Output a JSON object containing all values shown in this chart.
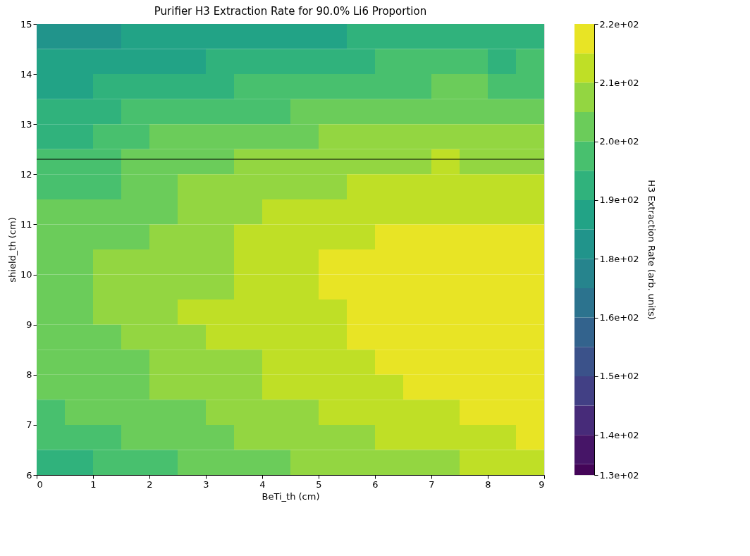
{
  "chart_data": {
    "type": "heatmap",
    "title": "Purifier H3 Extraction Rate for 90.0% Li6 Proportion",
    "xlabel": "BeTi_th (cm)",
    "ylabel": "shield_th (cm)",
    "clabel": "H3 Extraction Rate (arb. units)",
    "x": [
      0.25,
      0.75,
      1.25,
      1.75,
      2.25,
      2.75,
      3.25,
      3.75,
      4.25,
      4.75,
      5.25,
      5.75,
      6.25,
      6.75,
      7.25,
      7.75,
      8.25,
      8.75
    ],
    "y": [
      14.75,
      14.25,
      13.75,
      13.25,
      12.75,
      12.25,
      11.75,
      11.25,
      10.75,
      10.25,
      9.75,
      9.25,
      8.75,
      8.25,
      7.75,
      7.25,
      6.75,
      6.25
    ],
    "cells": [
      [
        178,
        178,
        178,
        184,
        184,
        184,
        184,
        184,
        184,
        184,
        184,
        189,
        189,
        189,
        189,
        189,
        189,
        189
      ],
      [
        184,
        184,
        184,
        184,
        184,
        184,
        189,
        189,
        189,
        189,
        189,
        189,
        195,
        195,
        195,
        195,
        189,
        195
      ],
      [
        184,
        184,
        189,
        189,
        189,
        189,
        189,
        195,
        195,
        195,
        195,
        195,
        195,
        195,
        200,
        200,
        195,
        195
      ],
      [
        189,
        189,
        189,
        195,
        195,
        195,
        195,
        195,
        195,
        200,
        200,
        200,
        200,
        200,
        200,
        200,
        200,
        200
      ],
      [
        189,
        189,
        195,
        195,
        200,
        200,
        200,
        200,
        200,
        200,
        206,
        206,
        206,
        206,
        206,
        206,
        206,
        206
      ],
      [
        195,
        195,
        195,
        200,
        200,
        200,
        200,
        206,
        206,
        206,
        206,
        206,
        206,
        206,
        211,
        206,
        206,
        206
      ],
      [
        195,
        195,
        195,
        200,
        200,
        206,
        206,
        206,
        206,
        206,
        206,
        211,
        211,
        211,
        211,
        211,
        211,
        211
      ],
      [
        200,
        200,
        200,
        200,
        200,
        206,
        206,
        206,
        211,
        211,
        211,
        211,
        211,
        211,
        211,
        211,
        211,
        211
      ],
      [
        200,
        200,
        200,
        200,
        206,
        206,
        206,
        211,
        211,
        211,
        211,
        211,
        217,
        217,
        217,
        217,
        217,
        217
      ],
      [
        200,
        200,
        206,
        206,
        206,
        206,
        206,
        211,
        211,
        211,
        217,
        217,
        217,
        217,
        217,
        217,
        217,
        217
      ],
      [
        200,
        200,
        206,
        206,
        206,
        206,
        206,
        211,
        211,
        211,
        217,
        217,
        217,
        217,
        217,
        217,
        217,
        217
      ],
      [
        200,
        200,
        206,
        206,
        206,
        211,
        211,
        211,
        211,
        211,
        211,
        217,
        217,
        217,
        217,
        217,
        217,
        217
      ],
      [
        200,
        200,
        200,
        206,
        206,
        206,
        211,
        211,
        211,
        211,
        211,
        217,
        217,
        217,
        217,
        217,
        217,
        217
      ],
      [
        200,
        200,
        200,
        200,
        206,
        206,
        206,
        206,
        211,
        211,
        211,
        211,
        217,
        217,
        217,
        217,
        217,
        217
      ],
      [
        200,
        200,
        200,
        200,
        206,
        206,
        206,
        206,
        211,
        211,
        211,
        211,
        211,
        217,
        217,
        217,
        217,
        217
      ],
      [
        195,
        200,
        200,
        200,
        200,
        200,
        206,
        206,
        206,
        206,
        211,
        211,
        211,
        211,
        211,
        217,
        217,
        217
      ],
      [
        195,
        195,
        195,
        200,
        200,
        200,
        200,
        206,
        206,
        206,
        206,
        206,
        211,
        211,
        211,
        211,
        211,
        217
      ],
      [
        189,
        189,
        195,
        195,
        195,
        200,
        200,
        200,
        200,
        206,
        206,
        206,
        206,
        206,
        206,
        211,
        211,
        211
      ]
    ],
    "xlim": [
      0,
      9
    ],
    "xticks": [
      0,
      1,
      2,
      3,
      4,
      5,
      6,
      7,
      8,
      9
    ],
    "ylim": [
      6,
      15
    ],
    "yticks": [
      6,
      7,
      8,
      9,
      10,
      11,
      12,
      13,
      14,
      15
    ],
    "clim": [
      135,
      219.5
    ],
    "cticks": [
      {
        "value": 135,
        "label": "1.3e+02"
      },
      {
        "value": 142.5,
        "label": "1.4e+02"
      },
      {
        "value": 153.5,
        "label": "1.5e+02"
      },
      {
        "value": 164.5,
        "label": "1.6e+02"
      },
      {
        "value": 175.5,
        "label": "1.8e+02"
      },
      {
        "value": 186.5,
        "label": "1.9e+02"
      },
      {
        "value": 197.5,
        "label": "2.0e+02"
      },
      {
        "value": 208.5,
        "label": "2.1e+02"
      },
      {
        "value": 219.5,
        "label": "2.2e+02"
      }
    ],
    "ref_lines": [
      {
        "axis": "y",
        "value": 12.3,
        "color": "#000000"
      }
    ]
  }
}
